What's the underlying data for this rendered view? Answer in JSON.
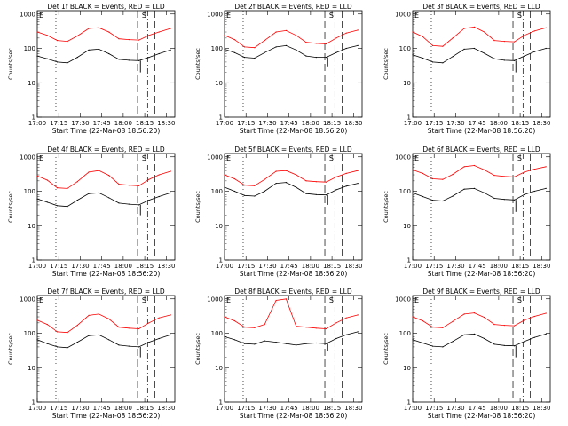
{
  "chart_data": [
    {
      "type": "line",
      "title": "Det 1f BLACK = Events, RED = LLD",
      "ylabel": "Counts/sec",
      "xlabel": "Start Time (22-Mar-08 18:56:20)",
      "x_ticks": [
        "17:00",
        "17:15",
        "17:30",
        "17:45",
        "18:00",
        "18:15",
        "18:30"
      ],
      "y_ticks": [
        "1",
        "10",
        "100",
        "1000"
      ],
      "ylim": [
        1,
        1000
      ],
      "y_scale": "log",
      "flag_labels": [
        "E",
        "S"
      ],
      "series": [
        {
          "color": "#000000",
          "base": 42,
          "amp": 2.1,
          "x": [
            "17:00",
            "17:07",
            "17:14",
            "17:21",
            "17:28",
            "17:36",
            "17:43",
            "17:50",
            "17:57",
            "18:04",
            "18:11",
            "18:18",
            "18:25",
            "18:33"
          ],
          "values": [
            60,
            50,
            40,
            38,
            55,
            90,
            95,
            70,
            48,
            45,
            44,
            55,
            70,
            90
          ]
        },
        {
          "color": "#ff0000",
          "base": 170,
          "amp": 1.9,
          "x": [
            "17:00",
            "17:07",
            "17:14",
            "17:21",
            "17:28",
            "17:36",
            "17:43",
            "17:50",
            "17:57",
            "18:04",
            "18:11",
            "18:18",
            "18:25",
            "18:33"
          ],
          "values": [
            300,
            240,
            170,
            160,
            230,
            380,
            400,
            300,
            190,
            180,
            175,
            240,
            300,
            380
          ]
        }
      ],
      "dip": {
        "x": "18:12",
        "value": 20
      },
      "vlines": [
        "17:13",
        "18:10",
        "18:17",
        "18:22"
      ]
    },
    {
      "type": "line",
      "title": "Det 2f BLACK = Events, RED = LLD",
      "ylabel": "Counts/sec",
      "xlabel": "Start Time (22-Mar-08 18:56:20)",
      "x_ticks": [
        "17:00",
        "17:15",
        "17:30",
        "17:45",
        "18:00",
        "18:15",
        "18:30"
      ],
      "y_ticks": [
        "1",
        "10",
        "100",
        "1000"
      ],
      "ylim": [
        1,
        1000
      ],
      "y_scale": "log",
      "flag_labels": [
        "E",
        "S"
      ],
      "series": [
        {
          "color": "#000000",
          "base": 55,
          "amp": 2.0,
          "x": [
            "17:00",
            "17:07",
            "17:14",
            "17:21",
            "17:28",
            "17:36",
            "17:43",
            "17:50",
            "17:57",
            "18:04",
            "18:11",
            "18:18",
            "18:25",
            "18:33"
          ],
          "values": [
            95,
            75,
            55,
            52,
            75,
            110,
            120,
            90,
            60,
            55,
            55,
            75,
            100,
            120
          ]
        },
        {
          "color": "#ff0000",
          "base": 110,
          "amp": 2.0,
          "x": [
            "17:00",
            "17:07",
            "17:14",
            "17:21",
            "17:28",
            "17:36",
            "17:43",
            "17:50",
            "17:57",
            "18:04",
            "18:11",
            "18:18",
            "18:25",
            "18:33"
          ],
          "values": [
            240,
            180,
            110,
            105,
            170,
            300,
            330,
            240,
            150,
            140,
            135,
            200,
            280,
            340
          ]
        }
      ],
      "dip": {
        "x": "18:12",
        "value": 30
      },
      "vlines": [
        "17:13",
        "18:10",
        "18:17",
        "18:22"
      ]
    },
    {
      "type": "line",
      "title": "Det 3f BLACK = Events, RED = LLD",
      "ylabel": "Counts/sec",
      "xlabel": "Start Time (22-Mar-08 18:56:20)",
      "x_ticks": [
        "17:00",
        "17:15",
        "17:30",
        "17:45",
        "18:00",
        "18:15",
        "18:30"
      ],
      "y_ticks": [
        "1",
        "10",
        "100",
        "1000"
      ],
      "ylim": [
        1,
        1000
      ],
      "y_scale": "log",
      "flag_labels": [
        "E",
        "S"
      ],
      "series": [
        {
          "color": "#000000",
          "base": 42,
          "amp": 2.1,
          "x": [
            "17:00",
            "17:07",
            "17:14",
            "17:21",
            "17:28",
            "17:36",
            "17:43",
            "17:50",
            "17:57",
            "18:04",
            "18:11",
            "18:18",
            "18:25",
            "18:33"
          ],
          "values": [
            65,
            52,
            40,
            38,
            58,
            95,
            100,
            72,
            50,
            45,
            44,
            60,
            80,
            100
          ]
        },
        {
          "color": "#ff0000",
          "base": 120,
          "amp": 2.0,
          "x": [
            "17:00",
            "17:07",
            "17:14",
            "17:21",
            "17:28",
            "17:36",
            "17:43",
            "17:50",
            "17:57",
            "18:04",
            "18:11",
            "18:18",
            "18:25",
            "18:33"
          ],
          "values": [
            300,
            220,
            120,
            115,
            200,
            380,
            420,
            300,
            170,
            160,
            155,
            240,
            320,
            400
          ]
        }
      ],
      "dip": {
        "x": "18:12",
        "value": 20
      },
      "vlines": [
        "17:13",
        "18:10",
        "18:17",
        "18:22"
      ]
    },
    {
      "type": "line",
      "title": "Det 4f BLACK = Events, RED = LLD",
      "ylabel": "Counts/sec",
      "xlabel": "Start Time (22-Mar-08 18:56:20)",
      "x_ticks": [
        "17:00",
        "17:15",
        "17:30",
        "17:45",
        "18:00",
        "18:15",
        "18:30"
      ],
      "y_ticks": [
        "1",
        "10",
        "100",
        "1000"
      ],
      "ylim": [
        1,
        1000
      ],
      "y_scale": "log",
      "flag_labels": [
        "E",
        "S"
      ],
      "series": [
        {
          "color": "#000000",
          "base": 40,
          "amp": 2.1,
          "x": [
            "17:00",
            "17:07",
            "17:14",
            "17:21",
            "17:28",
            "17:36",
            "17:43",
            "17:50",
            "17:57",
            "18:04",
            "18:11",
            "18:18",
            "18:25",
            "18:33"
          ],
          "values": [
            60,
            48,
            38,
            36,
            55,
            85,
            90,
            65,
            45,
            42,
            40,
            55,
            70,
            90
          ]
        },
        {
          "color": "#ff0000",
          "base": 125,
          "amp": 2.0,
          "x": [
            "17:00",
            "17:07",
            "17:14",
            "17:21",
            "17:28",
            "17:36",
            "17:43",
            "17:50",
            "17:57",
            "18:04",
            "18:11",
            "18:18",
            "18:25",
            "18:33"
          ],
          "values": [
            280,
            210,
            125,
            120,
            190,
            360,
            400,
            290,
            160,
            150,
            145,
            220,
            300,
            380
          ]
        }
      ],
      "dip": {
        "x": "18:12",
        "value": 20
      },
      "vlines": [
        "17:13",
        "18:10",
        "18:17",
        "18:22"
      ]
    },
    {
      "type": "line",
      "title": "Det 5f BLACK = Events, RED = LLD",
      "ylabel": "Counts/sec",
      "xlabel": "Start Time (22-Mar-08 18:56:20)",
      "x_ticks": [
        "17:00",
        "17:15",
        "17:30",
        "17:45",
        "18:00",
        "18:15",
        "18:30"
      ],
      "y_ticks": [
        "1",
        "10",
        "100",
        "1000"
      ],
      "ylim": [
        1,
        1000
      ],
      "y_scale": "log",
      "flag_labels": [
        "E",
        "S"
      ],
      "series": [
        {
          "color": "#000000",
          "base": 75,
          "amp": 1.9,
          "x": [
            "17:00",
            "17:07",
            "17:14",
            "17:21",
            "17:28",
            "17:36",
            "17:43",
            "17:50",
            "17:57",
            "18:04",
            "18:11",
            "18:18",
            "18:25",
            "18:33"
          ],
          "values": [
            130,
            100,
            75,
            72,
            100,
            170,
            180,
            130,
            85,
            80,
            78,
            110,
            140,
            170
          ]
        },
        {
          "color": "#ff0000",
          "base": 150,
          "amp": 1.9,
          "x": [
            "17:00",
            "17:07",
            "17:14",
            "17:21",
            "17:28",
            "17:36",
            "17:43",
            "17:50",
            "17:57",
            "18:04",
            "18:11",
            "18:18",
            "18:25",
            "18:33"
          ],
          "values": [
            300,
            230,
            150,
            145,
            220,
            380,
            400,
            300,
            200,
            190,
            185,
            260,
            330,
            400
          ]
        }
      ],
      "dip": {
        "x": "18:12",
        "value": 40
      },
      "vlines": [
        "17:13",
        "18:10",
        "18:17",
        "18:22"
      ]
    },
    {
      "type": "line",
      "title": "Det 6f BLACK = Events, RED = LLD",
      "ylabel": "Counts/sec",
      "xlabel": "Start Time (22-Mar-08 18:56:20)",
      "x_ticks": [
        "17:00",
        "17:15",
        "17:30",
        "17:45",
        "18:00",
        "18:15",
        "18:30"
      ],
      "y_ticks": [
        "1",
        "10",
        "100",
        "1000"
      ],
      "ylim": [
        1,
        1000
      ],
      "y_scale": "log",
      "flag_labels": [
        "E",
        "S"
      ],
      "series": [
        {
          "color": "#000000",
          "base": 55,
          "amp": 1.9,
          "x": [
            "17:00",
            "17:07",
            "17:14",
            "17:21",
            "17:28",
            "17:36",
            "17:43",
            "17:50",
            "17:57",
            "18:04",
            "18:11",
            "18:18",
            "18:25",
            "18:33"
          ],
          "values": [
            90,
            70,
            55,
            52,
            72,
            115,
            120,
            90,
            62,
            58,
            56,
            80,
            100,
            120
          ]
        },
        {
          "color": "#ff0000",
          "base": 230,
          "amp": 1.9,
          "x": [
            "17:00",
            "17:07",
            "17:14",
            "17:21",
            "17:28",
            "17:36",
            "17:43",
            "17:50",
            "17:57",
            "18:04",
            "18:11",
            "18:18",
            "18:25",
            "18:33"
          ],
          "values": [
            420,
            330,
            230,
            220,
            310,
            520,
            560,
            420,
            290,
            270,
            260,
            360,
            440,
            520
          ]
        }
      ],
      "dip": {
        "x": "18:12",
        "value": 25
      },
      "vlines": [
        "17:13",
        "18:10",
        "18:17",
        "18:22"
      ]
    },
    {
      "type": "line",
      "title": "Det 7f BLACK = Events, RED = LLD",
      "ylabel": "Counts/sec",
      "xlabel": "Start Time (22-Mar-08 18:56:20)",
      "x_ticks": [
        "17:00",
        "17:15",
        "17:30",
        "17:45",
        "18:00",
        "18:15",
        "18:30"
      ],
      "y_ticks": [
        "1",
        "10",
        "100",
        "1000"
      ],
      "ylim": [
        1,
        1000
      ],
      "y_scale": "log",
      "flag_labels": [
        "E",
        "S"
      ],
      "series": [
        {
          "color": "#000000",
          "base": 40,
          "amp": 2.0,
          "x": [
            "17:00",
            "17:07",
            "17:14",
            "17:21",
            "17:28",
            "17:36",
            "17:43",
            "17:50",
            "17:57",
            "18:04",
            "18:11",
            "18:18",
            "18:25",
            "18:33"
          ],
          "values": [
            65,
            50,
            40,
            38,
            55,
            85,
            90,
            65,
            45,
            42,
            40,
            55,
            70,
            90
          ]
        },
        {
          "color": "#ff0000",
          "base": 110,
          "amp": 2.0,
          "x": [
            "17:00",
            "17:07",
            "17:14",
            "17:21",
            "17:28",
            "17:36",
            "17:43",
            "17:50",
            "17:57",
            "18:04",
            "18:11",
            "18:18",
            "18:25",
            "18:33"
          ],
          "values": [
            240,
            180,
            110,
            105,
            170,
            330,
            360,
            260,
            150,
            140,
            135,
            200,
            280,
            340
          ]
        }
      ],
      "dip": {
        "x": "18:12",
        "value": 20
      },
      "vlines": [
        "17:13",
        "18:10",
        "18:17",
        "18:22"
      ]
    },
    {
      "type": "line",
      "title": "Det 8f BLACK = Events, RED = LLD",
      "ylabel": "Counts/sec",
      "xlabel": "Start Time (22-Mar-08 18:56:20)",
      "x_ticks": [
        "17:00",
        "17:15",
        "17:30",
        "17:45",
        "18:00",
        "18:15",
        "18:30"
      ],
      "y_ticks": [
        "1",
        "10",
        "100",
        "1000"
      ],
      "ylim": [
        1,
        1000
      ],
      "y_scale": "log",
      "flag_labels": [
        "E",
        "S"
      ],
      "series": [
        {
          "color": "#000000",
          "base": 50,
          "amp": 1.9,
          "x": [
            "17:00",
            "17:07",
            "17:14",
            "17:21",
            "17:28",
            "17:36",
            "17:43",
            "17:50",
            "17:57",
            "18:04",
            "18:11",
            "18:18",
            "18:25",
            "18:33"
          ],
          "values": [
            80,
            65,
            50,
            48,
            60,
            55,
            50,
            45,
            50,
            52,
            50,
            70,
            90,
            110
          ]
        },
        {
          "color": "#ff0000",
          "base": 150,
          "amp": 1.9,
          "x": [
            "17:00",
            "17:07",
            "17:14",
            "17:21",
            "17:28",
            "17:36",
            "17:43",
            "17:50",
            "17:57",
            "18:04",
            "18:11",
            "18:18",
            "18:25",
            "18:33"
          ],
          "values": [
            300,
            230,
            150,
            145,
            180,
            900,
            1000,
            160,
            150,
            140,
            135,
            200,
            280,
            340
          ]
        }
      ],
      "dip": {
        "x": "18:12",
        "value": 30
      },
      "vlines": [
        "17:13",
        "18:10",
        "18:17",
        "18:22"
      ]
    },
    {
      "type": "line",
      "title": "Det 9f BLACK = Events, RED = LLD",
      "ylabel": "Counts/sec",
      "xlabel": "Start Time (22-Mar-08 18:56:20)",
      "x_ticks": [
        "17:00",
        "17:15",
        "17:30",
        "17:45",
        "18:00",
        "18:15",
        "18:30"
      ],
      "y_ticks": [
        "1",
        "10",
        "100",
        "1000"
      ],
      "ylim": [
        1,
        1000
      ],
      "y_scale": "log",
      "flag_labels": [
        "E",
        "S"
      ],
      "series": [
        {
          "color": "#000000",
          "base": 42,
          "amp": 2.0,
          "x": [
            "17:00",
            "17:07",
            "17:14",
            "17:21",
            "17:28",
            "17:36",
            "17:43",
            "17:50",
            "17:57",
            "18:04",
            "18:11",
            "18:18",
            "18:25",
            "18:33"
          ],
          "values": [
            65,
            52,
            42,
            40,
            58,
            90,
            95,
            70,
            48,
            44,
            43,
            58,
            75,
            95
          ]
        },
        {
          "color": "#ff0000",
          "base": 150,
          "amp": 1.9,
          "x": [
            "17:00",
            "17:07",
            "17:14",
            "17:21",
            "17:28",
            "17:36",
            "17:43",
            "17:50",
            "17:57",
            "18:04",
            "18:11",
            "18:18",
            "18:25",
            "18:33"
          ],
          "values": [
            300,
            230,
            150,
            145,
            220,
            360,
            390,
            290,
            180,
            170,
            165,
            240,
            310,
            380
          ]
        }
      ],
      "dip": {
        "x": "18:12",
        "value": 20
      },
      "vlines": [
        "17:13",
        "18:10",
        "18:17",
        "18:22"
      ]
    }
  ]
}
